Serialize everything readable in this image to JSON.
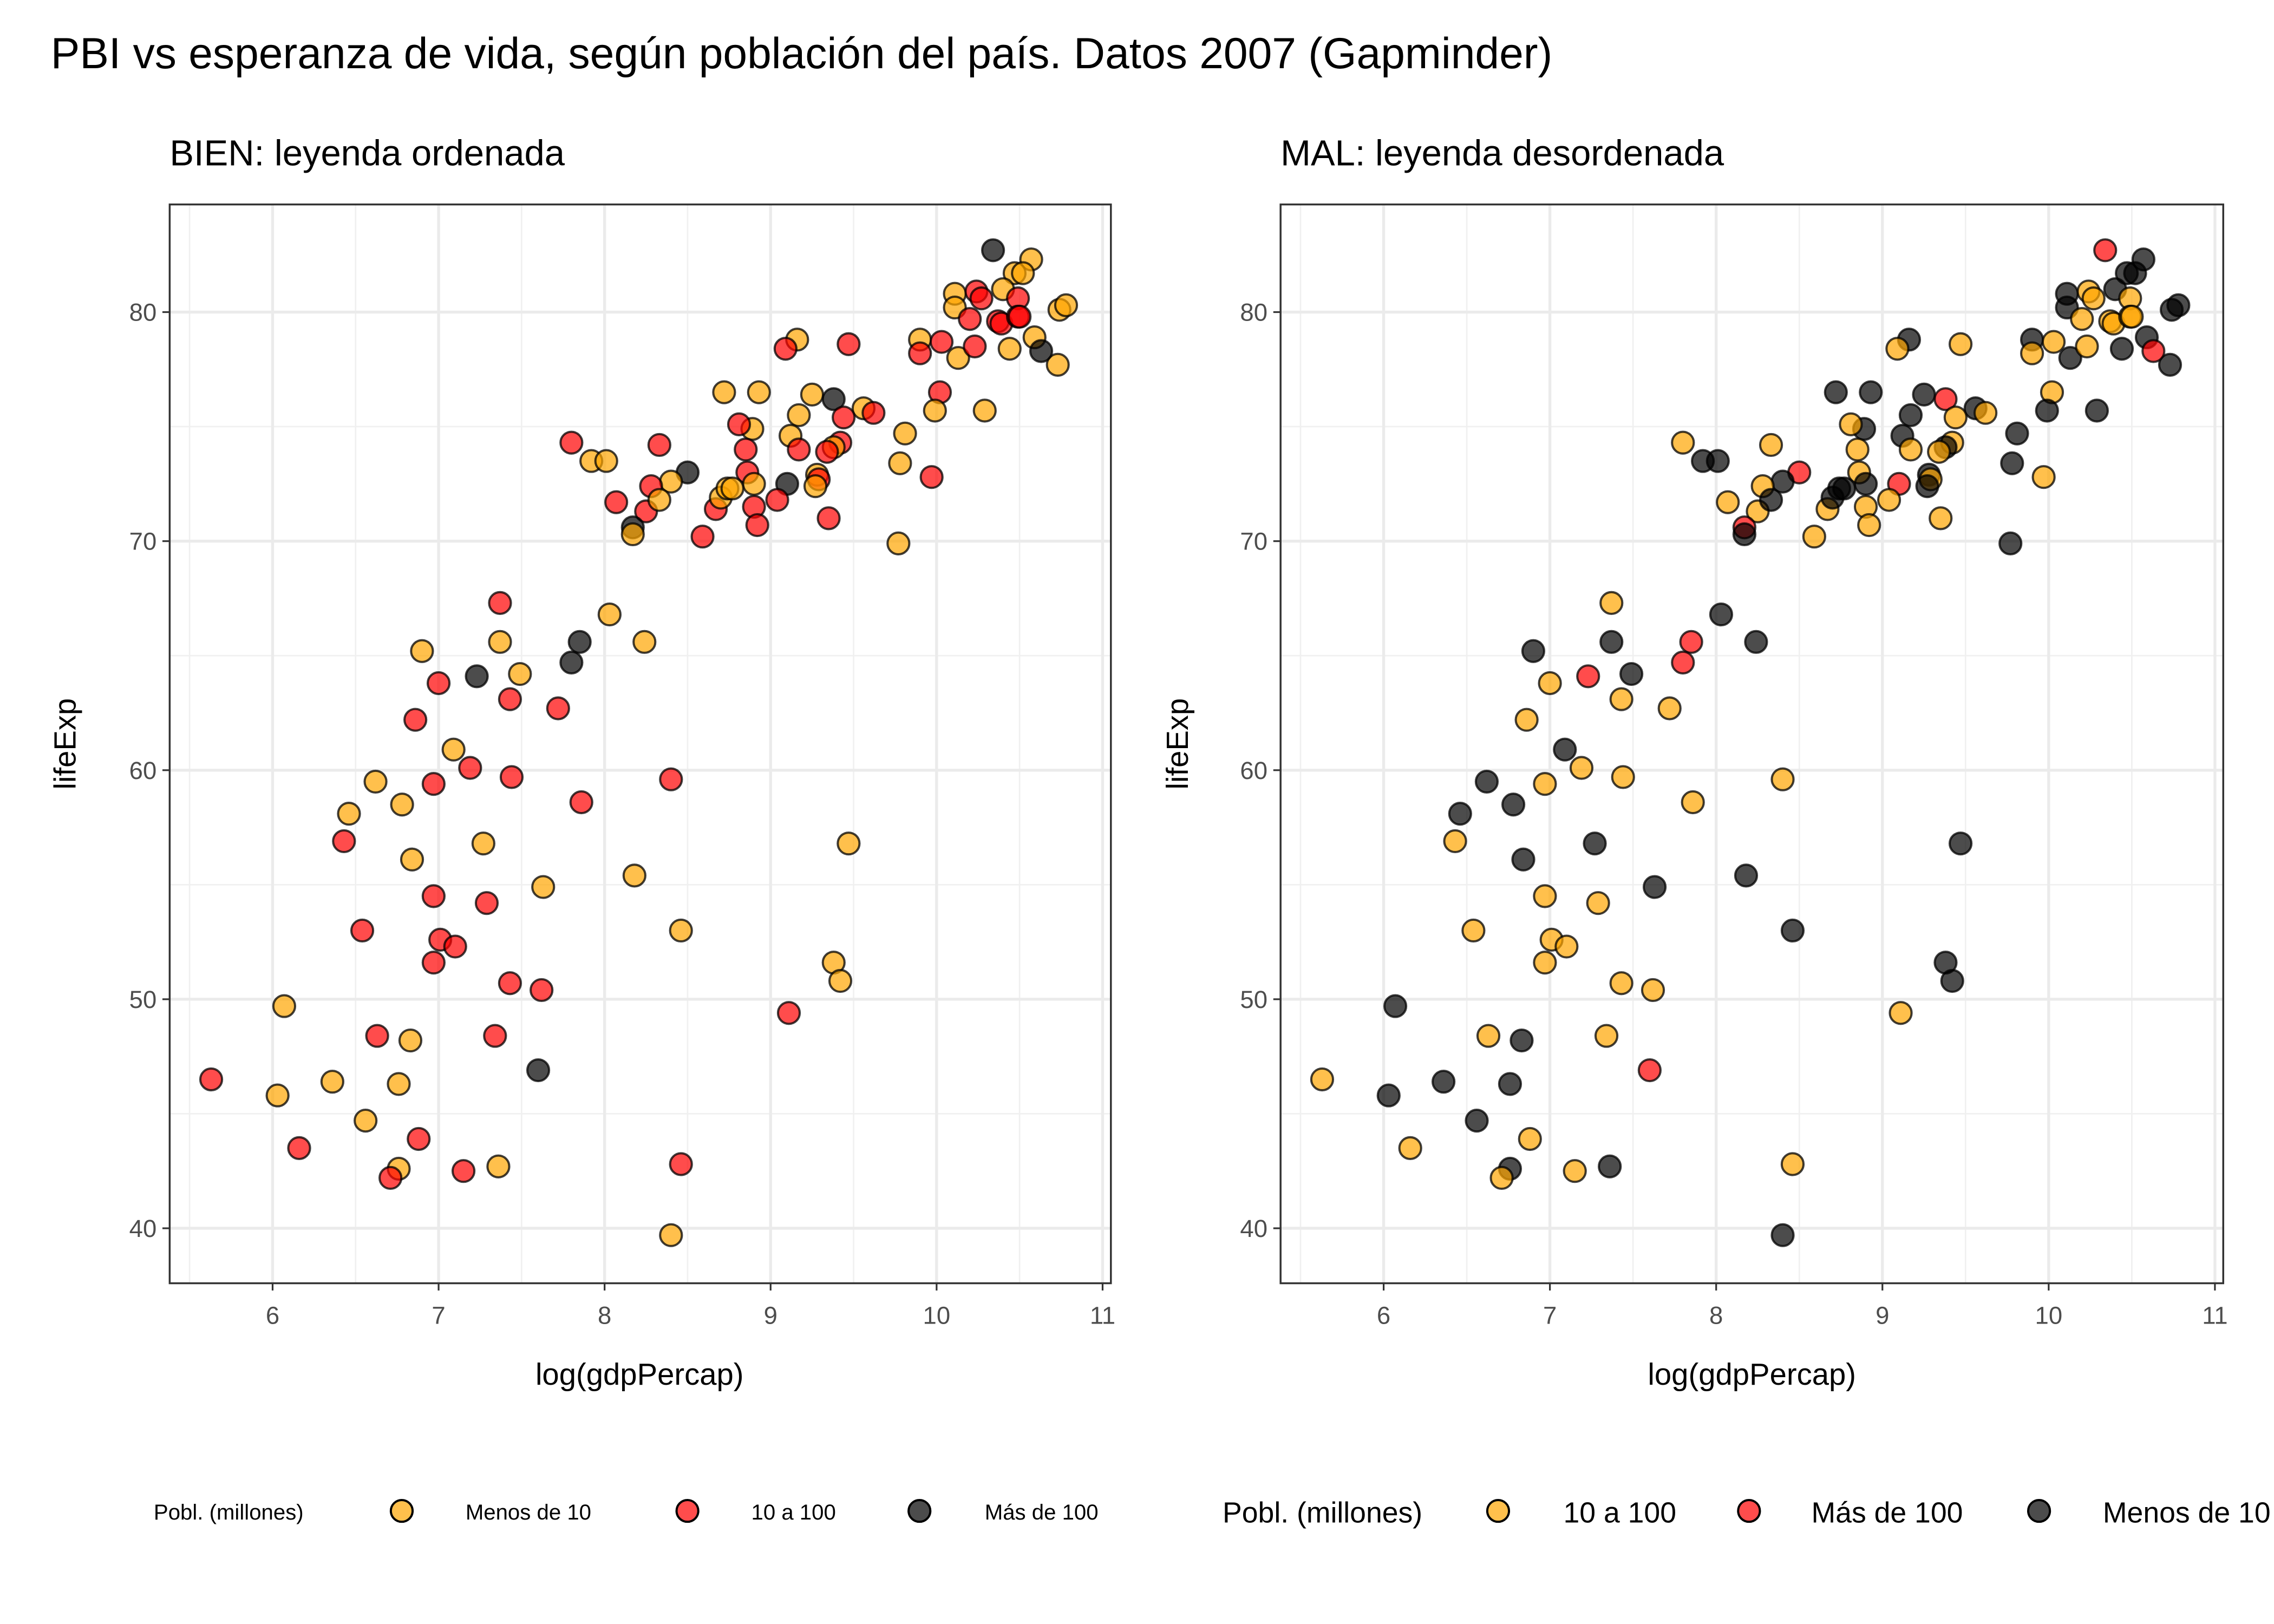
{
  "title": "PBI vs esperanza de vida, según población del país. Datos 2007 (Gapminder)",
  "colors": {
    "orange": "#FFA500",
    "red": "#FF0000",
    "black": "#000000"
  },
  "chart_data": [
    {
      "type": "scatter",
      "title": "BIEN: leyenda ordenada",
      "xlabel": "log(gdpPercap)",
      "ylabel": "lifeExp",
      "xlim": [
        5.38,
        11.05
      ],
      "ylim": [
        37.6,
        84.7
      ],
      "xticks": [
        "6",
        "7",
        "8",
        "9",
        "10",
        "11"
      ],
      "yticks": [
        "40",
        "50",
        "60",
        "70",
        "80"
      ],
      "grid": true,
      "legend": {
        "position": "bottom",
        "title": "Pobl. (millones)",
        "entries": [
          {
            "label": "Menos de 10",
            "color": "#FFA500"
          },
          {
            "label": "10 a 100",
            "color": "#FF0000"
          },
          {
            "label": "Más de 100",
            "color": "#000000"
          }
        ]
      },
      "category_colors": {
        "Menos de 10": "#FFA500",
        "10 a 100": "#FF0000",
        "Más de 100": "#000000"
      }
    },
    {
      "type": "scatter",
      "title": "MAL: leyenda desordenada",
      "xlabel": "log(gdpPercap)",
      "ylabel": "lifeExp",
      "xlim": [
        5.38,
        11.05
      ],
      "ylim": [
        37.6,
        84.7
      ],
      "xticks": [
        "6",
        "7",
        "8",
        "9",
        "10",
        "11"
      ],
      "yticks": [
        "40",
        "50",
        "60",
        "70",
        "80"
      ],
      "grid": true,
      "legend": {
        "position": "bottom",
        "title": "Pobl. (millones)",
        "entries": [
          {
            "label": "10 a 100",
            "color": "#FFA500"
          },
          {
            "label": "Más de 100",
            "color": "#FF0000"
          },
          {
            "label": "Menos de 10",
            "color": "#000000"
          }
        ]
      },
      "category_colors": {
        "10 a 100": "#FFA500",
        "Más de 100": "#FF0000",
        "Menos de 10": "#000000"
      }
    }
  ],
  "points": [
    [
      10.34,
      82.7,
      "Más de 100"
    ],
    [
      10.57,
      82.3,
      "Menos de 10"
    ],
    [
      10.47,
      81.7,
      "Menos de 10"
    ],
    [
      10.52,
      81.7,
      "Menos de 10"
    ],
    [
      10.11,
      80.8,
      "Menos de 10"
    ],
    [
      10.24,
      80.9,
      "10 a 100"
    ],
    [
      10.27,
      80.6,
      "10 a 100"
    ],
    [
      10.4,
      81.0,
      "Menos de 10"
    ],
    [
      10.49,
      80.6,
      "10 a 100"
    ],
    [
      10.11,
      80.2,
      "Menos de 10"
    ],
    [
      10.2,
      79.7,
      "10 a 100"
    ],
    [
      10.37,
      79.6,
      "10 a 100"
    ],
    [
      10.39,
      79.5,
      "10 a 100"
    ],
    [
      10.49,
      79.8,
      "10 a 100"
    ],
    [
      10.5,
      79.8,
      "10 a 100"
    ],
    [
      10.74,
      80.1,
      "Menos de 10"
    ],
    [
      10.78,
      80.3,
      "Menos de 10"
    ],
    [
      10.59,
      78.9,
      "Menos de 10"
    ],
    [
      10.44,
      78.4,
      "Menos de 10"
    ],
    [
      10.73,
      77.7,
      "Menos de 10"
    ],
    [
      10.63,
      78.3,
      "Más de 100"
    ],
    [
      10.13,
      78.0,
      "Menos de 10"
    ],
    [
      9.9,
      78.8,
      "Menos de 10"
    ],
    [
      10.03,
      78.7,
      "10 a 100"
    ],
    [
      9.9,
      78.2,
      "10 a 100"
    ],
    [
      10.23,
      78.5,
      "10 a 100"
    ],
    [
      10.02,
      76.5,
      "10 a 100"
    ],
    [
      9.99,
      75.7,
      "Menos de 10"
    ],
    [
      10.29,
      75.7,
      "Menos de 10"
    ],
    [
      9.16,
      78.8,
      "Menos de 10"
    ],
    [
      9.09,
      78.4,
      "10 a 100"
    ],
    [
      9.47,
      78.6,
      "10 a 100"
    ],
    [
      8.72,
      76.5,
      "Menos de 10"
    ],
    [
      8.93,
      76.5,
      "Menos de 10"
    ],
    [
      9.25,
      76.4,
      "Menos de 10"
    ],
    [
      9.38,
      76.2,
      "Más de 100"
    ],
    [
      9.56,
      75.8,
      "Menos de 10"
    ],
    [
      9.62,
      75.6,
      "10 a 100"
    ],
    [
      9.17,
      75.5,
      "Menos de 10"
    ],
    [
      8.89,
      74.9,
      "Menos de 10"
    ],
    [
      8.81,
      75.1,
      "10 a 100"
    ],
    [
      9.12,
      74.6,
      "Menos de 10"
    ],
    [
      9.44,
      75.4,
      "10 a 100"
    ],
    [
      9.81,
      74.7,
      "Menos de 10"
    ],
    [
      9.17,
      74.0,
      "10 a 100"
    ],
    [
      9.42,
      74.3,
      "10 a 100"
    ],
    [
      9.38,
      74.1,
      "Menos de 10"
    ],
    [
      9.34,
      73.9,
      "10 a 100"
    ],
    [
      8.85,
      74.0,
      "10 a 100"
    ],
    [
      8.86,
      73.0,
      "10 a 100"
    ],
    [
      9.28,
      72.9,
      "Menos de 10"
    ],
    [
      9.29,
      72.7,
      "10 a 100"
    ],
    [
      9.27,
      72.4,
      "Menos de 10"
    ],
    [
      9.1,
      72.5,
      "Más de 100"
    ],
    [
      9.04,
      71.8,
      "10 a 100"
    ],
    [
      8.9,
      72.5,
      "Menos de 10"
    ],
    [
      8.9,
      71.5,
      "10 a 100"
    ],
    [
      8.92,
      70.7,
      "10 a 100"
    ],
    [
      9.35,
      71.0,
      "10 a 100"
    ],
    [
      9.78,
      73.4,
      "Menos de 10"
    ],
    [
      9.97,
      72.8,
      "10 a 100"
    ],
    [
      9.77,
      69.9,
      "Menos de 10"
    ],
    [
      8.59,
      70.2,
      "10 a 100"
    ],
    [
      8.67,
      71.4,
      "10 a 100"
    ],
    [
      8.7,
      71.9,
      "Menos de 10"
    ],
    [
      8.74,
      72.3,
      "Menos de 10"
    ],
    [
      8.77,
      72.3,
      "Menos de 10"
    ],
    [
      8.5,
      73.0,
      "Más de 100"
    ],
    [
      8.4,
      72.6,
      "Menos de 10"
    ],
    [
      8.33,
      74.2,
      "10 a 100"
    ],
    [
      8.28,
      72.4,
      "10 a 100"
    ],
    [
      8.25,
      71.3,
      "10 a 100"
    ],
    [
      8.33,
      71.8,
      "Menos de 10"
    ],
    [
      8.17,
      70.6,
      "Más de 100"
    ],
    [
      8.17,
      70.3,
      "Menos de 10"
    ],
    [
      8.07,
      71.7,
      "10 a 100"
    ],
    [
      7.92,
      73.5,
      "Menos de 10"
    ],
    [
      8.01,
      73.5,
      "Menos de 10"
    ],
    [
      7.8,
      74.3,
      "10 a 100"
    ],
    [
      7.37,
      67.3,
      "10 a 100"
    ],
    [
      7.37,
      65.6,
      "Menos de 10"
    ],
    [
      6.9,
      65.2,
      "Menos de 10"
    ],
    [
      8.03,
      66.8,
      "Menos de 10"
    ],
    [
      7.85,
      65.6,
      "Más de 100"
    ],
    [
      8.24,
      65.6,
      "Menos de 10"
    ],
    [
      7.8,
      64.7,
      "Más de 100"
    ],
    [
      7.23,
      64.1,
      "Más de 100"
    ],
    [
      7.49,
      64.2,
      "Menos de 10"
    ],
    [
      7.0,
      63.8,
      "10 a 100"
    ],
    [
      7.43,
      63.1,
      "10 a 100"
    ],
    [
      7.72,
      62.7,
      "10 a 100"
    ],
    [
      6.86,
      62.2,
      "10 a 100"
    ],
    [
      7.09,
      60.9,
      "Menos de 10"
    ],
    [
      7.19,
      60.1,
      "10 a 100"
    ],
    [
      7.44,
      59.7,
      "10 a 100"
    ],
    [
      6.97,
      59.4,
      "10 a 100"
    ],
    [
      6.62,
      59.5,
      "Menos de 10"
    ],
    [
      6.46,
      58.1,
      "Menos de 10"
    ],
    [
      6.78,
      58.5,
      "Menos de 10"
    ],
    [
      7.86,
      58.6,
      "10 a 100"
    ],
    [
      8.4,
      59.6,
      "10 a 100"
    ],
    [
      6.43,
      56.9,
      "10 a 100"
    ],
    [
      7.27,
      56.8,
      "Menos de 10"
    ],
    [
      6.84,
      56.1,
      "Menos de 10"
    ],
    [
      9.47,
      56.8,
      "Menos de 10"
    ],
    [
      7.63,
      54.9,
      "Menos de 10"
    ],
    [
      8.18,
      55.4,
      "Menos de 10"
    ],
    [
      6.97,
      54.5,
      "10 a 100"
    ],
    [
      7.29,
      54.2,
      "10 a 100"
    ],
    [
      6.54,
      53.0,
      "10 a 100"
    ],
    [
      7.01,
      52.6,
      "10 a 100"
    ],
    [
      7.1,
      52.3,
      "10 a 100"
    ],
    [
      6.97,
      51.6,
      "10 a 100"
    ],
    [
      8.46,
      53.0,
      "Menos de 10"
    ],
    [
      9.38,
      51.6,
      "Menos de 10"
    ],
    [
      9.42,
      50.8,
      "Menos de 10"
    ],
    [
      7.43,
      50.7,
      "10 a 100"
    ],
    [
      7.62,
      50.4,
      "10 a 100"
    ],
    [
      6.07,
      49.7,
      "Menos de 10"
    ],
    [
      9.11,
      49.4,
      "10 a 100"
    ],
    [
      6.63,
      48.4,
      "10 a 100"
    ],
    [
      6.83,
      48.2,
      "Menos de 10"
    ],
    [
      7.34,
      48.4,
      "10 a 100"
    ],
    [
      7.6,
      46.9,
      "Más de 100"
    ],
    [
      5.63,
      46.5,
      "10 a 100"
    ],
    [
      6.36,
      46.4,
      "Menos de 10"
    ],
    [
      6.03,
      45.8,
      "Menos de 10"
    ],
    [
      6.76,
      46.3,
      "Menos de 10"
    ],
    [
      6.56,
      44.7,
      "Menos de 10"
    ],
    [
      6.16,
      43.5,
      "10 a 100"
    ],
    [
      6.88,
      43.9,
      "10 a 100"
    ],
    [
      6.76,
      42.6,
      "Menos de 10"
    ],
    [
      6.71,
      42.2,
      "10 a 100"
    ],
    [
      7.15,
      42.5,
      "10 a 100"
    ],
    [
      7.36,
      42.7,
      "Menos de 10"
    ],
    [
      8.46,
      42.8,
      "10 a 100"
    ],
    [
      8.4,
      39.7,
      "Menos de 10"
    ]
  ]
}
